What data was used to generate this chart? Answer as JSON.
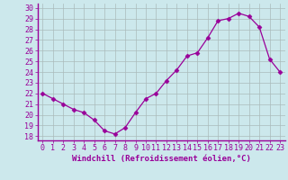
{
  "x": [
    0,
    1,
    2,
    3,
    4,
    5,
    6,
    7,
    8,
    9,
    10,
    11,
    12,
    13,
    14,
    15,
    16,
    17,
    18,
    19,
    20,
    21,
    22,
    23
  ],
  "y": [
    22.0,
    21.5,
    21.0,
    20.5,
    20.2,
    19.5,
    18.5,
    18.2,
    18.8,
    20.2,
    21.5,
    22.0,
    23.2,
    24.2,
    25.5,
    25.8,
    27.2,
    28.8,
    29.0,
    29.5,
    29.2,
    28.2,
    25.2,
    24.0
  ],
  "line_color": "#990099",
  "marker": "D",
  "marker_size": 2.5,
  "bg_color": "#cce8ec",
  "grid_color": "#aabbbb",
  "ylabel_ticks": [
    18,
    19,
    20,
    21,
    22,
    23,
    24,
    25,
    26,
    27,
    28,
    29,
    30
  ],
  "ylim": [
    17.6,
    30.4
  ],
  "xlim": [
    -0.5,
    23.5
  ],
  "xlabel": "Windchill (Refroidissement éolien,°C)",
  "xlabel_fontsize": 6.5,
  "tick_fontsize": 6.0,
  "title": ""
}
